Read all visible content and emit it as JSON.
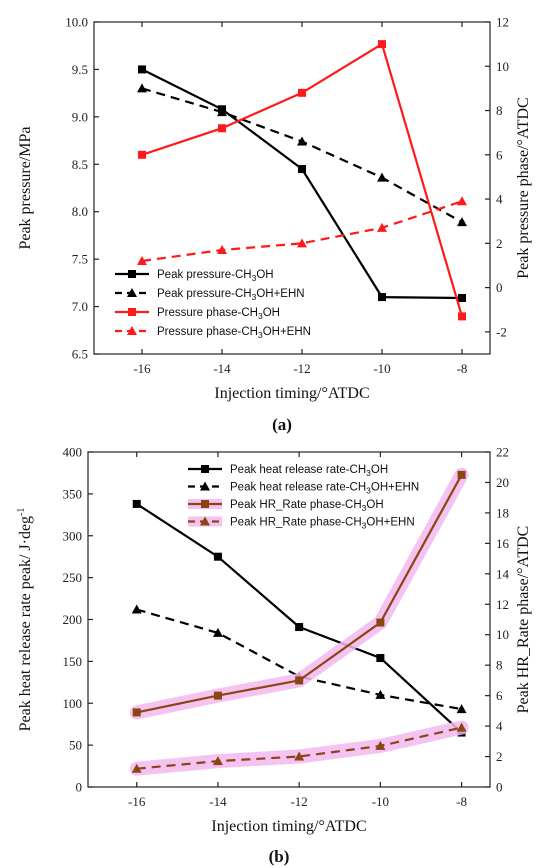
{
  "chart_data": [
    {
      "type": "line",
      "panel_label": "(a)",
      "xlabel": "Injection timing/°ATDC",
      "ylabel_left": "Peak pressure/MPa",
      "ylabel_right": "Peak pressure phase/°ATDC",
      "x": [
        -16,
        -14,
        -12,
        -10,
        -8
      ],
      "x_ticks": [
        "-16",
        "-14",
        "-12",
        "-10",
        "-8"
      ],
      "xlim": [
        -17.2,
        -7.3
      ],
      "ylim_left": [
        6.5,
        10.0
      ],
      "ylim_right": [
        -3,
        12
      ],
      "y_ticks_left": [
        "6.5",
        "7.0",
        "7.5",
        "8.0",
        "8.5",
        "9.0",
        "9.5",
        "10.0"
      ],
      "y_ticks_right": [
        "-2",
        "0",
        "2",
        "4",
        "6",
        "8",
        "10",
        "12"
      ],
      "legend_position": "bottom-left",
      "series": [
        {
          "name": "Peak pressure-CH3OH",
          "name_main": "Peak pressure-CH",
          "name_sub": "3",
          "name_tail": "OH",
          "axis": "left",
          "color": "#000000",
          "dash": "solid",
          "marker": "square",
          "values": [
            9.5,
            9.08,
            8.45,
            7.1,
            7.09
          ]
        },
        {
          "name": "Peak pressure-CH3OH+EHN",
          "name_main": "Peak pressure-CH",
          "name_sub": "3",
          "name_tail": "OH+EHN",
          "axis": "left",
          "color": "#000000",
          "dash": "dashed",
          "marker": "triangle",
          "values": [
            9.3,
            9.05,
            8.74,
            8.36,
            7.89
          ]
        },
        {
          "name": "Pressure phase-CH3OH",
          "name_main": "Pressure phase-CH",
          "name_sub": "3",
          "name_tail": "OH",
          "axis": "right",
          "color": "#ff1a1a",
          "dash": "solid",
          "marker": "square",
          "values": [
            6.0,
            7.2,
            8.8,
            11.0,
            -1.3
          ]
        },
        {
          "name": "Pressure phase-CH3OH+EHN",
          "name_main": "Pressure phase-CH",
          "name_sub": "3",
          "name_tail": "OH+EHN",
          "axis": "right",
          "color": "#ff1a1a",
          "dash": "dashed",
          "marker": "triangle",
          "values": [
            1.2,
            1.7,
            2.0,
            2.7,
            3.9
          ]
        }
      ]
    },
    {
      "type": "line",
      "panel_label": "(b)",
      "xlabel": "Injection timing/°ATDC",
      "ylabel_left": "Peak heat release rate peak/ J·deg",
      "ylabel_left_sup": "-1",
      "ylabel_right": "Peak HR_Rate phase/°ATDC",
      "x": [
        -16,
        -14,
        -12,
        -10,
        -8
      ],
      "x_ticks": [
        "-16",
        "-14",
        "-12",
        "-10",
        "-8"
      ],
      "xlim": [
        -17.2,
        -7.3
      ],
      "ylim_left": [
        0,
        400
      ],
      "ylim_right": [
        0,
        22
      ],
      "y_ticks_left": [
        "0",
        "50",
        "100",
        "150",
        "200",
        "250",
        "300",
        "350",
        "400"
      ],
      "y_ticks_right": [
        "0",
        "2",
        "4",
        "6",
        "8",
        "10",
        "12",
        "14",
        "16",
        "18",
        "20",
        "22"
      ],
      "legend_position": "top-center",
      "series": [
        {
          "name": "Peak heat release rate-CH3OH",
          "name_main": "Peak heat release rate-CH",
          "name_sub": "3",
          "name_tail": "OH",
          "axis": "left",
          "color": "#000000",
          "dash": "solid",
          "marker": "square",
          "glow": false,
          "values": [
            338,
            275,
            191,
            154,
            65
          ]
        },
        {
          "name": "Peak heat release rate-CH3OH+EHN",
          "name_main": "Peak heat release rate-CH",
          "name_sub": "3",
          "name_tail": "OH+EHN",
          "axis": "left",
          "color": "#000000",
          "dash": "dashed",
          "marker": "triangle",
          "glow": false,
          "values": [
            212,
            184,
            132,
            110,
            93
          ]
        },
        {
          "name": "Peak HR_Rate phase-CH3OH",
          "name_main": "Peak HR_Rate phase-CH",
          "name_sub": "3",
          "name_tail": "OH",
          "axis": "right",
          "color": "#8b4513",
          "dash": "solid",
          "marker": "square",
          "glow": true,
          "values": [
            4.9,
            6.0,
            7.0,
            10.8,
            20.5
          ]
        },
        {
          "name": "Peak HR_Rate phase-CH3OH+EHN",
          "name_main": "Peak HR_Rate phase-CH",
          "name_sub": "3",
          "name_tail": "OH+EHN",
          "axis": "right",
          "color": "#8b4513",
          "dash": "dashed",
          "marker": "triangle",
          "glow": true,
          "values": [
            1.2,
            1.7,
            2.0,
            2.7,
            3.9
          ]
        }
      ],
      "colors": {
        "glow": "#f2b8f0"
      }
    }
  ]
}
